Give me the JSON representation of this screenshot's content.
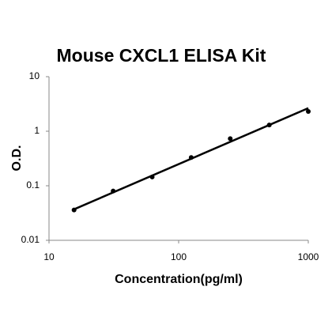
{
  "chart_data": {
    "type": "scatter",
    "title": "Mouse CXCL1 ELISA Kit",
    "x_label": "Concentration(pg/ml)",
    "y_label": "O.D.",
    "x": [
      15.6,
      31.25,
      62.5,
      125,
      250,
      500,
      1000
    ],
    "values": [
      0.036,
      0.08,
      0.145,
      0.33,
      0.73,
      1.3,
      2.3
    ],
    "color": "#000000",
    "trendline": {
      "x": [
        15.6,
        1000
      ],
      "y": [
        0.037,
        2.65
      ]
    },
    "xlim": [
      10,
      1000
    ],
    "ylim": [
      0.01,
      10
    ],
    "xticks": [
      10,
      100,
      1000
    ],
    "yticks": [
      0.01,
      0.1,
      1,
      10
    ],
    "xscale": "log",
    "yscale": "log"
  }
}
